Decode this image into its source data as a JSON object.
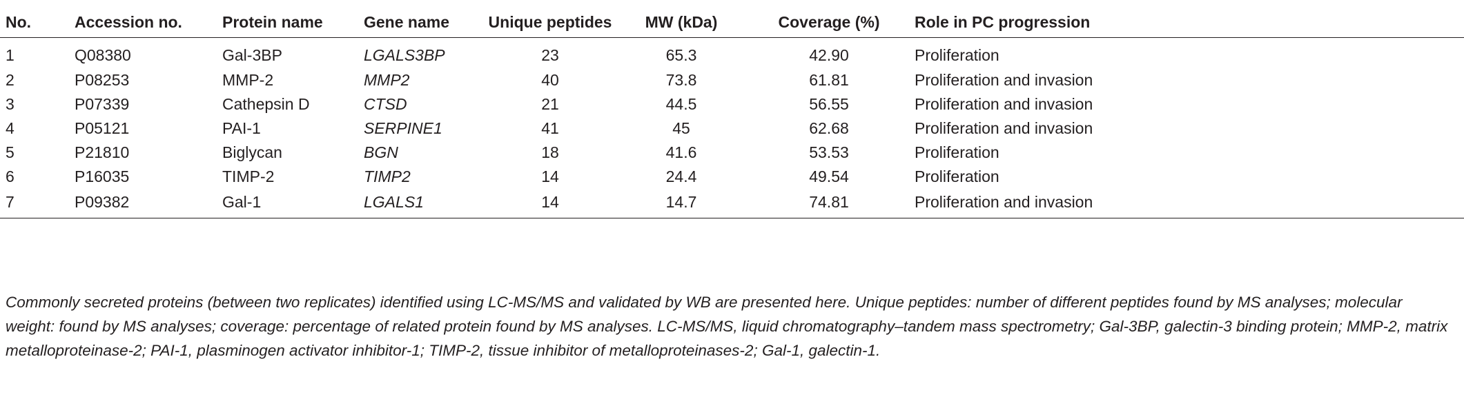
{
  "table": {
    "headers": [
      "No.",
      "Accession no.",
      "Protein name",
      "Gene name",
      "Unique peptides",
      "MW (kDa)",
      "Coverage (%)",
      "Role in PC progression"
    ],
    "rows": [
      [
        "1",
        "Q08380",
        "Gal-3BP",
        "LGALS3BP",
        "23",
        "65.3",
        "42.90",
        "Proliferation"
      ],
      [
        "2",
        "P08253",
        "MMP-2",
        "MMP2",
        "40",
        "73.8",
        "61.81",
        "Proliferation and invasion"
      ],
      [
        "3",
        "P07339",
        "Cathepsin D",
        "CTSD",
        "21",
        "44.5",
        "56.55",
        "Proliferation and invasion"
      ],
      [
        "4",
        "P05121",
        "PAI-1",
        "SERPINE1",
        "41",
        "45",
        "62.68",
        "Proliferation and invasion"
      ],
      [
        "5",
        "P21810",
        "Biglycan",
        "BGN",
        "18",
        "41.6",
        "53.53",
        "Proliferation"
      ],
      [
        "6",
        "P16035",
        "TIMP-2",
        "TIMP2",
        "14",
        "24.4",
        "49.54",
        "Proliferation"
      ],
      [
        "7",
        "P09382",
        "Gal-1",
        "LGALS1",
        "14",
        "14.7",
        "74.81",
        "Proliferation and invasion"
      ]
    ]
  },
  "footnote": "Commonly secreted proteins (between two replicates) identified using LC-MS/MS and validated by WB are presented here. Unique peptides: number of different peptides found by MS analyses; molecular weight: found by MS analyses; coverage: percentage of related protein found by MS analyses. LC-MS/MS, liquid chromatography–tandem mass spectrometry; Gal-3BP, galectin-3 binding protein; MMP-2, matrix metalloproteinase-2; PAI-1, plasminogen activator inhibitor-1; TIMP-2, tissue inhibitor of metalloproteinases-2; Gal-1, galectin-1."
}
